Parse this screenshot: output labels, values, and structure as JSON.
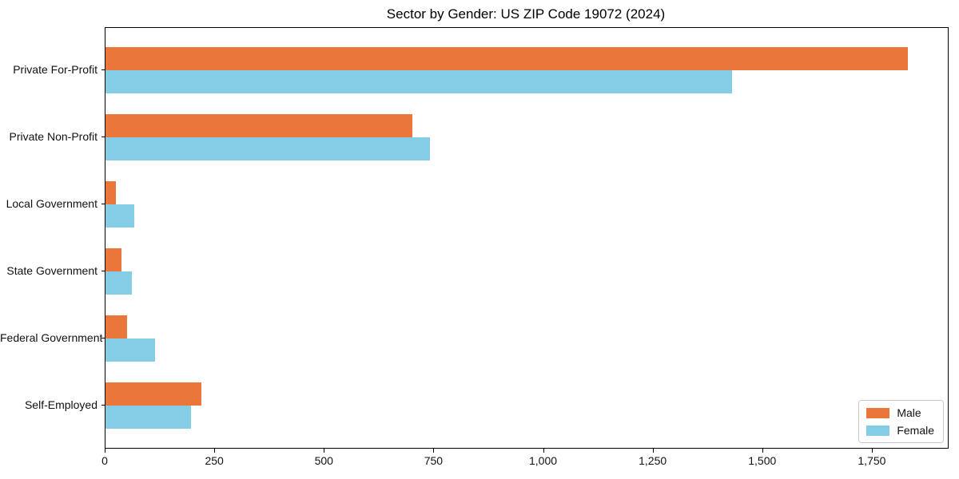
{
  "chart_data": {
    "type": "bar",
    "orientation": "horizontal",
    "title": "Sector by Gender: US ZIP Code 19072 (2024)",
    "categories": [
      "Private For-Profit",
      "Private Non-Profit",
      "Local Government",
      "State Government",
      "Federal Government",
      "Self-Employed"
    ],
    "series": [
      {
        "name": "Male",
        "color": "#ea7639",
        "values": [
          1830,
          700,
          23,
          37,
          50,
          218
        ]
      },
      {
        "name": "Female",
        "color": "#85cde7",
        "values": [
          1430,
          740,
          65,
          60,
          113,
          195
        ]
      }
    ],
    "xlim": [
      0,
      1921.5
    ],
    "xtick_values": [
      0,
      250,
      500,
      750,
      1000,
      1250,
      1500,
      1750
    ],
    "xtick_labels": [
      "0",
      "250",
      "500",
      "750",
      "1,000",
      "1,250",
      "1,500",
      "1,750"
    ],
    "ylabel": "",
    "xlabel": "",
    "grid": false,
    "legend": {
      "position": "lower right",
      "entries": [
        "Male",
        "Female"
      ]
    },
    "colors": {
      "background": "#ffffff",
      "spine": "#000000",
      "text": "#111111"
    }
  }
}
